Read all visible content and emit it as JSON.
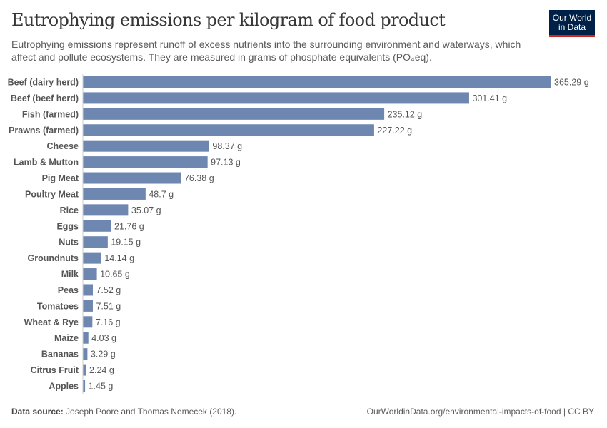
{
  "header": {
    "title": "Eutrophying emissions per kilogram of food product",
    "subtitle": "Eutrophying emissions represent runoff of excess nutrients into the surrounding environment and waterways, which affect and pollute ecosystems. They are measured in grams of phosphate equivalents (PO₄eq).",
    "logo_line1": "Our World",
    "logo_line2": "in Data"
  },
  "chart_data": {
    "type": "bar",
    "orientation": "horizontal",
    "unit": "g",
    "bar_color": "#6d87b0",
    "categories": [
      "Beef (dairy herd)",
      "Beef (beef herd)",
      "Fish (farmed)",
      "Prawns (farmed)",
      "Cheese",
      "Lamb & Mutton",
      "Pig Meat",
      "Poultry Meat",
      "Rice",
      "Eggs",
      "Nuts",
      "Groundnuts",
      "Milk",
      "Peas",
      "Tomatoes",
      "Wheat & Rye",
      "Maize",
      "Bananas",
      "Citrus Fruit",
      "Apples"
    ],
    "values": [
      365.29,
      301.41,
      235.12,
      227.22,
      98.37,
      97.13,
      76.38,
      48.7,
      35.07,
      21.76,
      19.15,
      14.14,
      10.65,
      7.52,
      7.51,
      7.16,
      4.03,
      3.29,
      2.24,
      1.45
    ],
    "labels": [
      "365.29 g",
      "301.41 g",
      "235.12 g",
      "227.22 g",
      "98.37 g",
      "97.13 g",
      "76.38 g",
      "48.7 g",
      "35.07 g",
      "21.76 g",
      "19.15 g",
      "14.14 g",
      "10.65 g",
      "7.52 g",
      "7.51 g",
      "7.16 g",
      "4.03 g",
      "3.29 g",
      "2.24 g",
      "1.45 g"
    ]
  },
  "footer": {
    "source_label": "Data source:",
    "source": "Joseph Poore and Thomas Nemecek (2018).",
    "url": "OurWorldinData.org/environmental-impacts-of-food | CC BY"
  }
}
